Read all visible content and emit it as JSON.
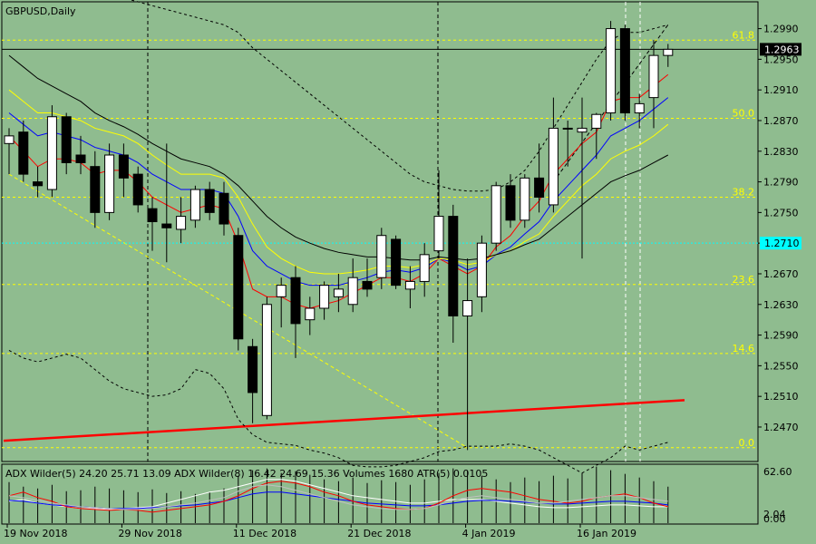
{
  "window": {
    "title": "GBPUSD,Daily"
  },
  "colors": {
    "background": "#8fbc8f",
    "bull": "#ffffff",
    "bear": "#000000",
    "fib": "#ffff00",
    "ma_red": "#ff0000",
    "ma_blue": "#0000ff",
    "ma_yellow": "#ffff00",
    "ma_black": "#000000",
    "trend_red": "#ff0000",
    "cyan": "#00ffff"
  },
  "chart_data": [
    {
      "type": "candlestick",
      "title": "GBPUSD,Daily",
      "ylim": [
        1.2425,
        1.3025
      ],
      "y_ticks": [
        "1.2990",
        "1.2950",
        "1.2910",
        "1.2870",
        "1.2830",
        "1.2790",
        "1.2750",
        "1.2710",
        "1.2670",
        "1.2630",
        "1.2590",
        "1.2550",
        "1.2510",
        "1.2470"
      ],
      "x_tick_labels": [
        {
          "label": "19 Nov 2018",
          "index": 0
        },
        {
          "label": "29 Nov 2018",
          "index": 8
        },
        {
          "label": "11 Dec 2018",
          "index": 16
        },
        {
          "label": "21 Dec 2018",
          "index": 24
        },
        {
          "label": "4 Jan 2019",
          "index": 32
        },
        {
          "label": "16 Jan 2019",
          "index": 40
        }
      ],
      "current_price": "1.2963",
      "cyan_price_tag": "1.2710",
      "fib_levels": [
        {
          "label": "61.8",
          "price": 1.2975
        },
        {
          "label": "50.0",
          "price": 1.2873
        },
        {
          "label": "38.2",
          "price": 1.277
        },
        {
          "label": "23.6",
          "price": 1.2656
        },
        {
          "label": "14.6",
          "price": 1.2566
        },
        {
          "label": "0.0",
          "price": 1.2443
        }
      ],
      "candles": [
        {
          "o": 1.284,
          "h": 1.286,
          "l": 1.28,
          "c": 1.285
        },
        {
          "o": 1.2855,
          "h": 1.287,
          "l": 1.279,
          "c": 1.28
        },
        {
          "o": 1.279,
          "h": 1.281,
          "l": 1.277,
          "c": 1.2785
        },
        {
          "o": 1.278,
          "h": 1.289,
          "l": 1.277,
          "c": 1.2875
        },
        {
          "o": 1.2875,
          "h": 1.288,
          "l": 1.28,
          "c": 1.2815
        },
        {
          "o": 1.2825,
          "h": 1.285,
          "l": 1.28,
          "c": 1.2815
        },
        {
          "o": 1.281,
          "h": 1.283,
          "l": 1.273,
          "c": 1.275
        },
        {
          "o": 1.275,
          "h": 1.284,
          "l": 1.274,
          "c": 1.2825
        },
        {
          "o": 1.2825,
          "h": 1.284,
          "l": 1.277,
          "c": 1.2795
        },
        {
          "o": 1.28,
          "h": 1.281,
          "l": 1.275,
          "c": 1.276
        },
        {
          "o": 1.2755,
          "h": 1.277,
          "l": 1.27,
          "c": 1.2738
        },
        {
          "o": 1.2735,
          "h": 1.284,
          "l": 1.2685,
          "c": 1.273
        },
        {
          "o": 1.2728,
          "h": 1.277,
          "l": 1.271,
          "c": 1.2745
        },
        {
          "o": 1.274,
          "h": 1.2785,
          "l": 1.273,
          "c": 1.278
        },
        {
          "o": 1.278,
          "h": 1.279,
          "l": 1.274,
          "c": 1.275
        },
        {
          "o": 1.2775,
          "h": 1.279,
          "l": 1.272,
          "c": 1.2735
        },
        {
          "o": 1.272,
          "h": 1.273,
          "l": 1.257,
          "c": 1.2585
        },
        {
          "o": 1.2575,
          "h": 1.2585,
          "l": 1.2475,
          "c": 1.2515
        },
        {
          "o": 1.2485,
          "h": 1.264,
          "l": 1.248,
          "c": 1.263
        },
        {
          "o": 1.264,
          "h": 1.2665,
          "l": 1.26,
          "c": 1.2655
        },
        {
          "o": 1.2665,
          "h": 1.268,
          "l": 1.256,
          "c": 1.2605
        },
        {
          "o": 1.261,
          "h": 1.264,
          "l": 1.259,
          "c": 1.2625
        },
        {
          "o": 1.2625,
          "h": 1.266,
          "l": 1.261,
          "c": 1.2655
        },
        {
          "o": 1.264,
          "h": 1.267,
          "l": 1.262,
          "c": 1.265
        },
        {
          "o": 1.263,
          "h": 1.269,
          "l": 1.262,
          "c": 1.2665
        },
        {
          "o": 1.266,
          "h": 1.269,
          "l": 1.264,
          "c": 1.265
        },
        {
          "o": 1.2665,
          "h": 1.273,
          "l": 1.265,
          "c": 1.272
        },
        {
          "o": 1.2715,
          "h": 1.272,
          "l": 1.265,
          "c": 1.2655
        },
        {
          "o": 1.265,
          "h": 1.268,
          "l": 1.2625,
          "c": 1.266
        },
        {
          "o": 1.266,
          "h": 1.271,
          "l": 1.264,
          "c": 1.2695
        },
        {
          "o": 1.27,
          "h": 1.2805,
          "l": 1.269,
          "c": 1.2745
        },
        {
          "o": 1.2745,
          "h": 1.276,
          "l": 1.258,
          "c": 1.2615
        },
        {
          "o": 1.2615,
          "h": 1.269,
          "l": 1.244,
          "c": 1.2635
        },
        {
          "o": 1.264,
          "h": 1.272,
          "l": 1.262,
          "c": 1.271
        },
        {
          "o": 1.271,
          "h": 1.279,
          "l": 1.27,
          "c": 1.2785
        },
        {
          "o": 1.2785,
          "h": 1.28,
          "l": 1.273,
          "c": 1.274
        },
        {
          "o": 1.274,
          "h": 1.28,
          "l": 1.273,
          "c": 1.2795
        },
        {
          "o": 1.2795,
          "h": 1.284,
          "l": 1.275,
          "c": 1.277
        },
        {
          "o": 1.276,
          "h": 1.29,
          "l": 1.275,
          "c": 1.286
        },
        {
          "o": 1.286,
          "h": 1.287,
          "l": 1.281,
          "c": 1.286
        },
        {
          "o": 1.2855,
          "h": 1.29,
          "l": 1.269,
          "c": 1.286
        },
        {
          "o": 1.286,
          "h": 1.288,
          "l": 1.282,
          "c": 1.2878
        },
        {
          "o": 1.288,
          "h": 1.3,
          "l": 1.287,
          "c": 1.299
        },
        {
          "o": 1.299,
          "h": 1.2995,
          "l": 1.287,
          "c": 1.288
        },
        {
          "o": 1.288,
          "h": 1.2905,
          "l": 1.286,
          "c": 1.2892
        },
        {
          "o": 1.29,
          "h": 1.2975,
          "l": 1.286,
          "c": 1.2955
        },
        {
          "o": 1.2955,
          "h": 1.297,
          "l": 1.294,
          "c": 1.2963
        }
      ],
      "moving_averages": [
        {
          "color": "ma_red",
          "values": [
            1.285,
            1.283,
            1.281,
            1.282,
            1.282,
            1.2815,
            1.28,
            1.2805,
            1.2805,
            1.279,
            1.277,
            1.276,
            1.275,
            1.2755,
            1.276,
            1.2755,
            1.271,
            1.265,
            1.264,
            1.264,
            1.263,
            1.2625,
            1.263,
            1.2635,
            1.2645,
            1.2655,
            1.2665,
            1.2665,
            1.266,
            1.267,
            1.269,
            1.268,
            1.267,
            1.268,
            1.2705,
            1.272,
            1.2745,
            1.2765,
            1.28,
            1.282,
            1.284,
            1.2855,
            1.2895,
            1.29,
            1.29,
            1.2915,
            1.293
          ]
        },
        {
          "color": "ma_blue",
          "values": [
            1.288,
            1.2865,
            1.285,
            1.2855,
            1.285,
            1.2845,
            1.2835,
            1.283,
            1.2825,
            1.2815,
            1.28,
            1.279,
            1.278,
            1.278,
            1.278,
            1.2775,
            1.2745,
            1.27,
            1.268,
            1.267,
            1.266,
            1.2655,
            1.2655,
            1.2655,
            1.266,
            1.2665,
            1.2672,
            1.2675,
            1.2672,
            1.2678,
            1.269,
            1.2685,
            1.2675,
            1.268,
            1.2695,
            1.2705,
            1.2722,
            1.2738,
            1.2765,
            1.2785,
            1.2805,
            1.2825,
            1.285,
            1.286,
            1.287,
            1.2885,
            1.29
          ]
        },
        {
          "color": "ma_yellow",
          "values": [
            1.291,
            1.2895,
            1.288,
            1.288,
            1.2875,
            1.287,
            1.286,
            1.2855,
            1.285,
            1.284,
            1.2825,
            1.2812,
            1.28,
            1.28,
            1.28,
            1.2795,
            1.277,
            1.2735,
            1.2705,
            1.269,
            1.268,
            1.2672,
            1.267,
            1.267,
            1.2672,
            1.2675,
            1.268,
            1.268,
            1.2678,
            1.2682,
            1.269,
            1.2688,
            1.2682,
            1.2685,
            1.2695,
            1.27,
            1.2712,
            1.2722,
            1.2745,
            1.2765,
            1.2785,
            1.28,
            1.282,
            1.283,
            1.2838,
            1.285,
            1.2865
          ]
        },
        {
          "color": "ma_black",
          "values": [
            1.2955,
            1.294,
            1.2925,
            1.2915,
            1.2905,
            1.2895,
            1.288,
            1.287,
            1.2862,
            1.2852,
            1.284,
            1.283,
            1.282,
            1.2815,
            1.281,
            1.28,
            1.2785,
            1.2765,
            1.2745,
            1.273,
            1.2718,
            1.271,
            1.2703,
            1.2698,
            1.2695,
            1.2692,
            1.2692,
            1.269,
            1.2688,
            1.2688,
            1.2692,
            1.269,
            1.2688,
            1.269,
            1.2695,
            1.27,
            1.2708,
            1.2715,
            1.273,
            1.2745,
            1.276,
            1.2775,
            1.279,
            1.2798,
            1.2805,
            1.2815,
            1.2825
          ]
        }
      ],
      "envelope_upper": [
        1.308,
        1.307,
        1.306,
        1.305,
        1.3045,
        1.304,
        1.3035,
        1.303,
        1.303,
        1.3025,
        1.302,
        1.3015,
        1.301,
        1.3005,
        1.3,
        1.2995,
        1.2985,
        1.2965,
        1.295,
        1.2935,
        1.292,
        1.2905,
        1.289,
        1.2875,
        1.286,
        1.2845,
        1.283,
        1.2815,
        1.28,
        1.279,
        1.2785,
        1.278,
        1.2778,
        1.2778,
        1.278,
        1.279,
        1.2805,
        1.283,
        1.286,
        1.289,
        1.292,
        1.295,
        1.2975,
        1.2985,
        1.2985,
        1.299,
        1.2995
      ],
      "envelope_lower": [
        1.257,
        1.256,
        1.2555,
        1.256,
        1.2565,
        1.256,
        1.2545,
        1.253,
        1.252,
        1.2515,
        1.251,
        1.2512,
        1.252,
        1.2545,
        1.254,
        1.252,
        1.248,
        1.246,
        1.245,
        1.2448,
        1.2446,
        1.244,
        1.2436,
        1.243,
        1.242,
        1.2418,
        1.2418,
        1.242,
        1.2425,
        1.243,
        1.2438,
        1.244,
        1.2445,
        1.2445,
        1.2445,
        1.2448,
        1.2445,
        1.244,
        1.243,
        1.242,
        1.241,
        1.242,
        1.243,
        1.2445,
        1.244,
        1.2445,
        1.245
      ]
    },
    {
      "type": "indicator",
      "legend": "ADX Wilder(5) 24.20 25.71 13.09 ADX Wilder(8) 16.42 24.69 15.36 Volumes 1680 ATR(5) 0.0105",
      "ylim": [
        0,
        62.6
      ],
      "y_ticks": [
        "62.60",
        "2.04",
        "0.00"
      ],
      "volumes": [
        45,
        40,
        38,
        42,
        35,
        36,
        40,
        38,
        36,
        34,
        37,
        33,
        35,
        32,
        34,
        38,
        52,
        58,
        60,
        55,
        57,
        53,
        48,
        46,
        50,
        44,
        47,
        45,
        42,
        48,
        55,
        60,
        58,
        52,
        48,
        45,
        50,
        46,
        52,
        49,
        55,
        62,
        58,
        54,
        50,
        46,
        40
      ],
      "adx5": [
        30,
        28,
        25,
        22,
        20,
        18,
        17,
        16,
        15,
        15,
        16,
        18,
        20,
        22,
        25,
        28,
        35,
        40,
        42,
        40,
        36,
        32,
        28,
        24,
        20,
        18,
        16,
        15,
        15,
        16,
        20,
        25,
        28,
        30,
        28,
        26,
        24,
        22,
        22,
        24,
        26,
        28,
        30,
        30,
        28,
        26,
        24
      ],
      "adx8": [
        25,
        24,
        22,
        20,
        19,
        18,
        17,
        16,
        16,
        16,
        17,
        18,
        19,
        20,
        22,
        24,
        28,
        32,
        34,
        34,
        32,
        30,
        28,
        26,
        24,
        22,
        21,
        20,
        19,
        19,
        20,
        22,
        24,
        25,
        25,
        24,
        23,
        22,
        21,
        21,
        22,
        23,
        24,
        24,
        23,
        22,
        20
      ],
      "red_line": [
        30,
        34,
        28,
        24,
        18,
        16,
        15,
        14,
        15,
        14,
        12,
        14,
        16,
        18,
        20,
        24,
        30,
        38,
        44,
        46,
        44,
        40,
        34,
        30,
        24,
        20,
        18,
        16,
        15,
        16,
        22,
        30,
        36,
        38,
        36,
        34,
        30,
        26,
        24,
        22,
        24,
        28,
        30,
        32,
        28,
        22,
        18
      ],
      "white_line": [
        24,
        26,
        22,
        20,
        18,
        16,
        16,
        15,
        16,
        17,
        18,
        22,
        26,
        30,
        34,
        36,
        40,
        44,
        48,
        48,
        46,
        42,
        38,
        34,
        30,
        28,
        26,
        24,
        22,
        22,
        24,
        26,
        26,
        26,
        24,
        22,
        20,
        18,
        17,
        17,
        18,
        19,
        20,
        20,
        19,
        18,
        18
      ]
    }
  ]
}
